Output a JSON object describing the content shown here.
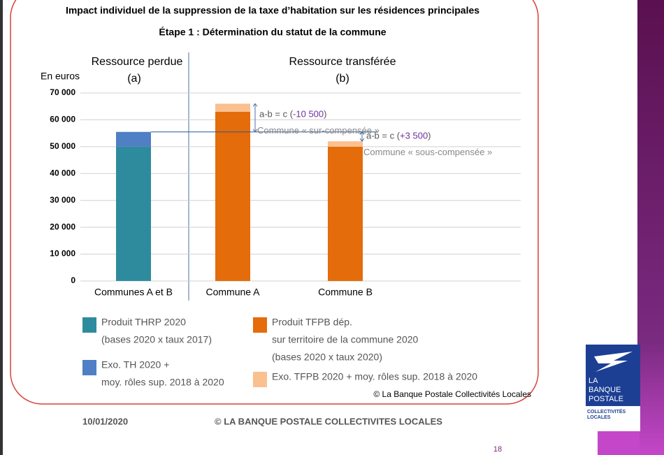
{
  "chart_data": {
    "type": "stacked_bar",
    "title": "Impact individuel de la suppression de la taxe d’habitation sur les résidences principales",
    "subtitle": "Étape 1 : Détermination du statut de la commune",
    "y_unit": "En euros",
    "headers": [
      {
        "title": "Ressource perdue",
        "sub": "(a)"
      },
      {
        "title": "Ressource transférée",
        "sub": "(b)"
      }
    ],
    "categories": [
      "Communes A et B",
      "Commune A",
      "Commune B"
    ],
    "series": [
      {
        "name": "Produit THRP 2020",
        "name_detail": [
          "(bases 2020 x taux 2017)"
        ],
        "color": "#2e8b9e",
        "values": [
          50000,
          0,
          0
        ]
      },
      {
        "name": "Exo. TH 2020 +",
        "name_detail": [
          "moy. rôles sup. 2018 à 2020"
        ],
        "color": "#4f7fc4",
        "values": [
          5500,
          0,
          0
        ]
      },
      {
        "name": "Produit TFPB dép.",
        "name_detail": [
          "sur territoire de la commune 2020",
          "(bases 2020 x taux 2020)"
        ],
        "color": "#e46c0a",
        "values": [
          0,
          63000,
          50000
        ]
      },
      {
        "name": "Exo. TFPB 2020 + moy. rôles sup. 2018 à 2020",
        "name_detail": [],
        "color": "#fbc08f",
        "values": [
          0,
          3000,
          2000
        ]
      }
    ],
    "ylim": [
      0,
      70000
    ],
    "yticks": [
      0,
      {
        "value": 10000,
        "label": "10 000"
      },
      {
        "value": 20000,
        "label": "20 000"
      },
      {
        "value": 30000,
        "label": "30 000"
      },
      {
        "value": 40000,
        "label": "40 000"
      },
      {
        "value": 50000,
        "label": "50 000"
      },
      {
        "value": 60000,
        "label": "60 000"
      },
      {
        "value": 70000,
        "label": "70 000"
      }
    ],
    "grid": true,
    "annotations": [
      {
        "prefix": "a-b = c (",
        "value": -10500,
        "label": "-10 500",
        "suffix": ")",
        "note": "Commune « sur-compensée »"
      },
      {
        "prefix": "a-b = c (",
        "value": 3500,
        "label": "+3 500",
        "suffix": ")",
        "note": "Commune  « sous-compensée »"
      }
    ],
    "source": "© La Banque Postale Collectivités Locales"
  },
  "footer": {
    "date": "10/01/2020",
    "copyright": "© LA BANQUE POSTALE COLLECTIVITES LOCALES",
    "page": "18"
  },
  "logo": {
    "lines": [
      "LA",
      "BANQUE",
      "POSTALE"
    ],
    "sub": [
      "COLLECTIVITÉS",
      "LOCALES"
    ]
  }
}
